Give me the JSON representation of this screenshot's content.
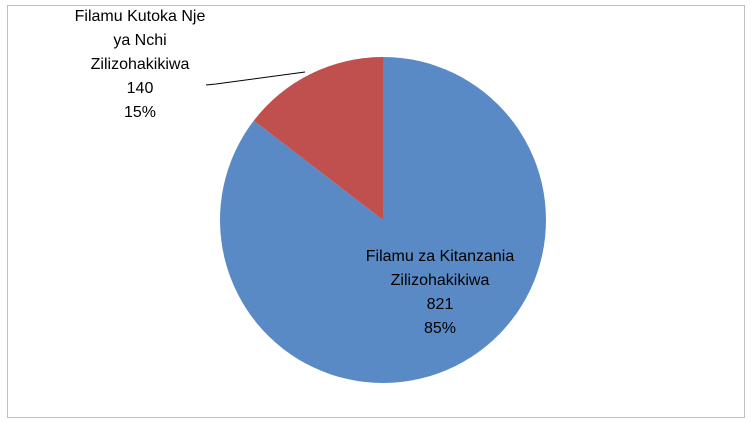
{
  "chart_data": {
    "type": "pie",
    "categories": [
      "Filamu za Kitanzania Zilizohakikiwa",
      "Filamu Kutoka Nje ya Nchi Zilizohakikiwa"
    ],
    "values": [
      821,
      140
    ],
    "percent_labels": [
      "85%",
      "15%"
    ],
    "colors": [
      "#5a8ac6",
      "#c0504d"
    ]
  }
}
